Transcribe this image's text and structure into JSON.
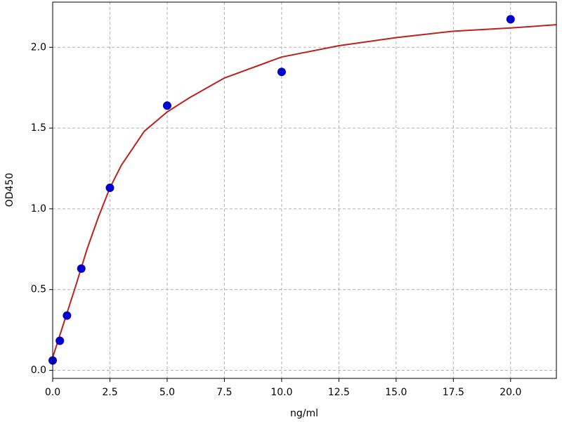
{
  "chart_data": {
    "type": "scatter",
    "x_label": "ng/ml",
    "y_label": "OD450",
    "xlim": [
      0,
      22
    ],
    "ylim": [
      -0.05,
      2.28
    ],
    "xticks": [
      {
        "value": 0,
        "label": "0.0"
      },
      2.5,
      {
        "value": 5,
        "label": "5.0"
      },
      7.5,
      {
        "value": 10,
        "label": "10.0"
      },
      12.5,
      {
        "value": 15,
        "label": "15.0"
      },
      17.5,
      {
        "value": 20,
        "label": "20.0"
      }
    ],
    "yticks": [
      {
        "value": 0,
        "label": "0.0"
      },
      0.5,
      {
        "value": 1,
        "label": "1.0"
      },
      1.5,
      {
        "value": 2,
        "label": "2.0"
      }
    ],
    "grid": true,
    "points": {
      "color": "#0000cc",
      "x": [
        0,
        0.3125,
        0.625,
        1.25,
        2.5,
        5,
        10,
        20
      ],
      "values": [
        0.061,
        0.183,
        0.339,
        0.63,
        1.13,
        1.639,
        1.848,
        2.174
      ]
    },
    "fit": {
      "color": "#c0201c",
      "x": [
        0,
        0.5,
        1,
        1.5,
        2,
        2.5,
        3,
        4,
        5,
        6,
        7.5,
        10,
        12.5,
        15,
        17.5,
        20,
        22
      ],
      "values": [
        0.08,
        0.3,
        0.52,
        0.75,
        0.95,
        1.13,
        1.27,
        1.48,
        1.6,
        1.69,
        1.81,
        1.94,
        2.01,
        2.06,
        2.1,
        2.12,
        2.14
      ]
    }
  }
}
